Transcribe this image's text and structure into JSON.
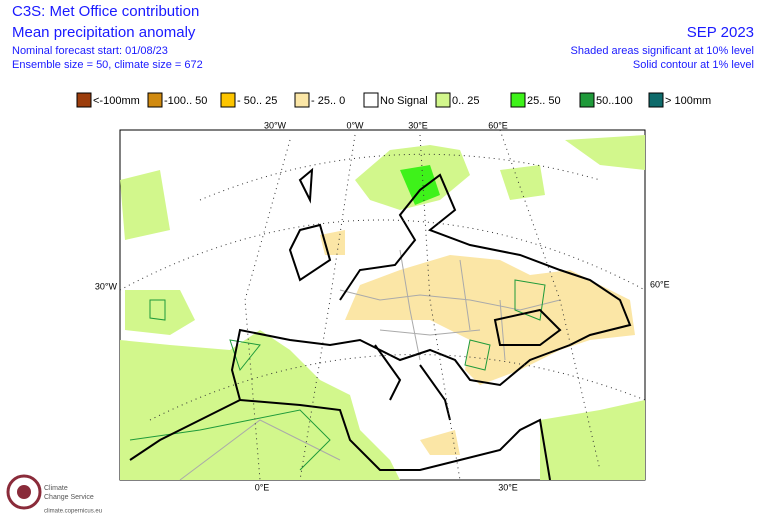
{
  "header": {
    "title": "C3S: Met Office contribution",
    "subtitle": "Mean precipitation anomaly",
    "forecast_start": "Nominal forecast start: 01/08/23",
    "ensemble": "Ensemble size = 50, climate size = 672",
    "period": "SEP 2023",
    "note_shaded": "Shaded areas significant at 10% level",
    "note_contour": "Solid contour at 1% level"
  },
  "legend": [
    {
      "label": "<-100mm",
      "color": "#9c3d0c"
    },
    {
      "label": "-100.. 50",
      "color": "#d08a10"
    },
    {
      "label": "- 50.. 25",
      "color": "#fdc500"
    },
    {
      "label": "- 25.. 0",
      "color": "#fbe6a6"
    },
    {
      "label": "No Signal",
      "color": "#ffffff"
    },
    {
      "label": "0.. 25",
      "color": "#d2f78c"
    },
    {
      "label": "25.. 50",
      "color": "#3ef21a"
    },
    {
      "label": "50..100",
      "color": "#1f9a3a"
    },
    {
      "label": "> 100mm",
      "color": "#0e6b6b"
    }
  ],
  "graticule": {
    "top": [
      "30°W",
      "0°W",
      "30°E",
      "60°E"
    ],
    "left": "30°W",
    "right": "60°E",
    "bottom": [
      "0°E",
      "30°E"
    ]
  },
  "logo": {
    "line1": "Climate",
    "line2": "Change Service",
    "url": "climate.copernicus.eu"
  }
}
